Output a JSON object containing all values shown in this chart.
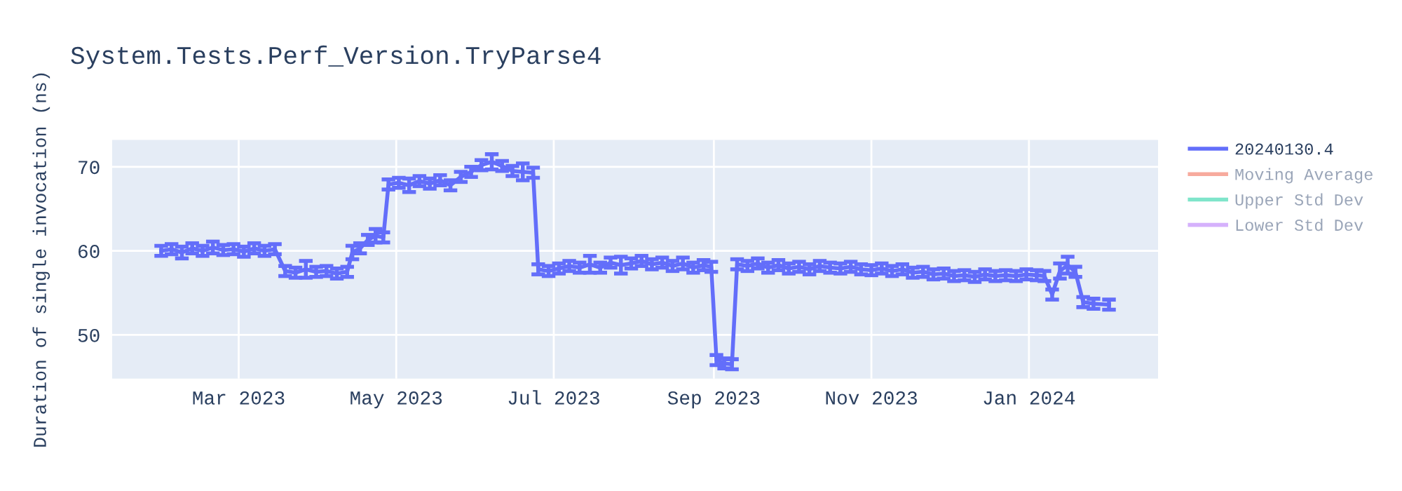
{
  "chart_data": {
    "type": "line",
    "title": "System.Tests.Perf_Version.TryParse4",
    "ylabel": "Duration of single invocation (ns)",
    "x": [
      "2023-01-30",
      "2023-02-03",
      "2023-02-07",
      "2023-02-11",
      "2023-02-15",
      "2023-02-19",
      "2023-02-23",
      "2023-02-27",
      "2023-03-03",
      "2023-03-07",
      "2023-03-11",
      "2023-03-15",
      "2023-03-19",
      "2023-03-23",
      "2023-03-27",
      "2023-03-31",
      "2023-04-04",
      "2023-04-08",
      "2023-04-12",
      "2023-04-14",
      "2023-04-17",
      "2023-04-20",
      "2023-04-23",
      "2023-04-26",
      "2023-04-28",
      "2023-05-02",
      "2023-05-06",
      "2023-05-10",
      "2023-05-14",
      "2023-05-18",
      "2023-05-22",
      "2023-05-26",
      "2023-05-30",
      "2023-06-03",
      "2023-06-07",
      "2023-06-11",
      "2023-06-15",
      "2023-06-19",
      "2023-06-23",
      "2023-06-25",
      "2023-06-29",
      "2023-07-03",
      "2023-07-07",
      "2023-07-11",
      "2023-07-15",
      "2023-07-19",
      "2023-07-23",
      "2023-07-27",
      "2023-07-31",
      "2023-08-04",
      "2023-08-08",
      "2023-08-12",
      "2023-08-16",
      "2023-08-20",
      "2023-08-24",
      "2023-08-28",
      "2023-08-31",
      "2023-09-02",
      "2023-09-05",
      "2023-09-08",
      "2023-09-10",
      "2023-09-14",
      "2023-09-18",
      "2023-09-22",
      "2023-09-26",
      "2023-09-30",
      "2023-10-04",
      "2023-10-08",
      "2023-10-12",
      "2023-10-16",
      "2023-10-20",
      "2023-10-24",
      "2023-10-28",
      "2023-11-01",
      "2023-11-05",
      "2023-11-09",
      "2023-11-13",
      "2023-11-17",
      "2023-11-21",
      "2023-11-25",
      "2023-11-29",
      "2023-12-03",
      "2023-12-07",
      "2023-12-11",
      "2023-12-15",
      "2023-12-19",
      "2023-12-23",
      "2023-12-27",
      "2023-12-31",
      "2024-01-04",
      "2024-01-07",
      "2024-01-10",
      "2024-01-13",
      "2024-01-16",
      "2024-01-19",
      "2024-01-22",
      "2024-01-26",
      "2024-02-01"
    ],
    "series": [
      {
        "name": "20240130.4",
        "color": "#636efa",
        "values": [
          60.0,
          60.2,
          59.8,
          60.3,
          60.0,
          60.4,
          60.1,
          60.2,
          59.9,
          60.3,
          60.0,
          60.2,
          57.6,
          57.4,
          57.8,
          57.5,
          57.6,
          57.3,
          57.5,
          59.8,
          60.3,
          61.3,
          61.8,
          61.6,
          67.9,
          68.1,
          67.8,
          68.3,
          68.0,
          68.4,
          67.8,
          68.8,
          69.4,
          70.2,
          70.6,
          70.1,
          69.5,
          69.4,
          69.3,
          57.8,
          57.6,
          57.9,
          58.2,
          58.0,
          58.4,
          58.0,
          58.6,
          58.3,
          58.5,
          58.8,
          58.4,
          58.6,
          58.2,
          58.5,
          58.0,
          58.3,
          58.1,
          47.0,
          46.6,
          46.5,
          58.4,
          58.2,
          58.5,
          58.0,
          58.3,
          57.9,
          58.1,
          57.8,
          58.2,
          58.0,
          57.9,
          58.1,
          57.8,
          57.7,
          57.9,
          57.6,
          57.8,
          57.4,
          57.5,
          57.2,
          57.3,
          57.0,
          57.1,
          56.9,
          57.2,
          57.0,
          57.1,
          57.0,
          57.2,
          57.1,
          57.0,
          54.8,
          57.6,
          58.3,
          57.5,
          53.9,
          53.7,
          53.6
        ],
        "errors": [
          0.6,
          0.6,
          0.7,
          0.6,
          0.6,
          0.7,
          0.6,
          0.6,
          0.6,
          0.6,
          0.6,
          0.6,
          0.6,
          0.6,
          1.0,
          0.6,
          0.6,
          0.6,
          0.6,
          0.8,
          0.6,
          0.6,
          0.8,
          0.6,
          0.6,
          0.6,
          0.8,
          0.6,
          0.6,
          0.6,
          0.6,
          0.6,
          0.6,
          0.6,
          0.9,
          0.6,
          0.6,
          1.0,
          0.6,
          0.6,
          0.6,
          0.6,
          0.6,
          0.6,
          1.0,
          0.6,
          0.6,
          1.0,
          0.6,
          0.6,
          0.6,
          0.6,
          0.6,
          0.7,
          0.6,
          0.6,
          0.6,
          0.6,
          0.6,
          0.6,
          0.6,
          0.6,
          0.6,
          0.6,
          0.6,
          0.6,
          0.6,
          0.6,
          0.6,
          0.6,
          0.6,
          0.6,
          0.6,
          0.6,
          0.6,
          0.6,
          0.6,
          0.6,
          0.6,
          0.6,
          0.6,
          0.6,
          0.6,
          0.6,
          0.6,
          0.6,
          0.6,
          0.6,
          0.6,
          0.6,
          0.6,
          0.6,
          0.9,
          1.0,
          0.6,
          0.6,
          0.6,
          0.6
        ]
      },
      {
        "name": "Moving Average",
        "color": "#ef553b",
        "values": [
          null,
          null,
          null,
          null,
          null,
          null,
          null,
          null,
          null,
          null,
          null,
          null,
          null,
          null,
          null,
          null,
          null,
          null,
          null,
          null,
          null,
          null,
          null,
          null,
          null,
          null,
          null,
          null,
          null,
          null,
          null,
          null,
          null,
          null,
          null,
          null,
          null,
          null,
          null,
          null,
          null,
          null,
          null,
          null,
          null,
          null,
          null,
          null,
          null,
          null,
          null,
          null,
          null,
          null,
          null,
          null,
          null,
          null,
          null,
          null,
          null,
          null,
          null,
          null,
          null,
          null,
          null,
          null,
          null,
          null,
          null,
          null,
          null,
          null,
          null,
          null,
          null,
          null,
          null,
          null,
          null,
          null,
          null,
          null,
          null,
          null,
          null,
          null,
          null,
          null,
          null,
          null,
          null,
          null,
          null,
          null,
          null,
          null
        ]
      },
      {
        "name": "Upper Std Dev",
        "color": "#00cc96",
        "values": [
          null,
          null,
          null,
          null,
          null,
          null,
          null,
          null,
          null,
          null,
          null,
          null,
          null,
          null,
          null,
          null,
          null,
          null,
          null,
          null,
          null,
          null,
          null,
          null,
          null,
          null,
          null,
          null,
          null,
          null,
          null,
          null,
          null,
          null,
          null,
          null,
          null,
          null,
          null,
          null,
          null,
          null,
          null,
          null,
          null,
          null,
          null,
          null,
          null,
          null,
          null,
          null,
          null,
          null,
          null,
          null,
          null,
          null,
          null,
          null,
          null,
          null,
          null,
          null,
          null,
          null,
          null,
          null,
          null,
          null,
          null,
          null,
          null,
          null,
          null,
          null,
          null,
          null,
          null,
          null,
          null,
          null,
          null,
          null,
          null,
          null,
          null,
          null,
          null,
          null,
          null,
          null,
          null,
          null,
          null,
          null,
          null,
          null
        ]
      },
      {
        "name": "Lower Std Dev",
        "color": "#ab63fa",
        "values": [
          null,
          null,
          null,
          null,
          null,
          null,
          null,
          null,
          null,
          null,
          null,
          null,
          null,
          null,
          null,
          null,
          null,
          null,
          null,
          null,
          null,
          null,
          null,
          null,
          null,
          null,
          null,
          null,
          null,
          null,
          null,
          null,
          null,
          null,
          null,
          null,
          null,
          null,
          null,
          null,
          null,
          null,
          null,
          null,
          null,
          null,
          null,
          null,
          null,
          null,
          null,
          null,
          null,
          null,
          null,
          null,
          null,
          null,
          null,
          null,
          null,
          null,
          null,
          null,
          null,
          null,
          null,
          null,
          null,
          null,
          null,
          null,
          null,
          null,
          null,
          null,
          null,
          null,
          null,
          null,
          null,
          null,
          null,
          null,
          null,
          null,
          null,
          null,
          null,
          null,
          null,
          null,
          null,
          null,
          null,
          null,
          null,
          null
        ]
      }
    ],
    "xlim": [
      "2023-01-11",
      "2024-02-20"
    ],
    "xticks": [
      {
        "value": "2023-03-01",
        "label": "Mar 2023"
      },
      {
        "value": "2023-05-01",
        "label": "May 2023"
      },
      {
        "value": "2023-07-01",
        "label": "Jul 2023"
      },
      {
        "value": "2023-09-01",
        "label": "Sep 2023"
      },
      {
        "value": "2023-11-01",
        "label": "Nov 2023"
      },
      {
        "value": "2024-01-01",
        "label": "Jan 2024"
      }
    ],
    "ylim": [
      44.8,
      73.2
    ],
    "yticks": [
      50,
      60,
      70
    ],
    "grid": true,
    "legend": "top right",
    "marker": "none",
    "line_style": "solid"
  }
}
